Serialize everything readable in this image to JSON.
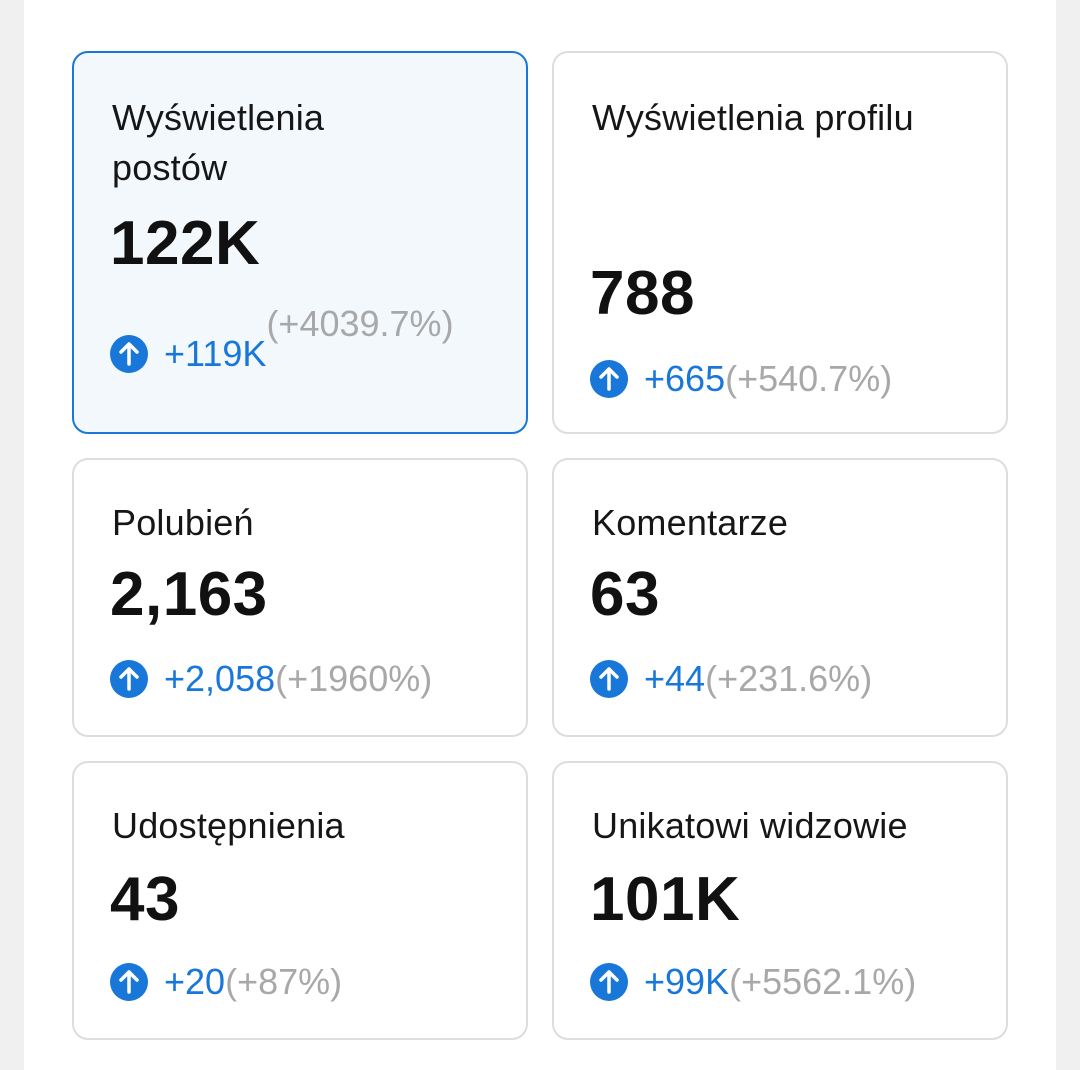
{
  "colors": {
    "accent": "#1877d8",
    "muted": "#a8a8a8",
    "border": "#dddddd",
    "selected_bg": "#f3f8fc"
  },
  "icons": {
    "trend": "arrow-up-circle-icon"
  },
  "cards": [
    {
      "title": "Wyświetlenia postów",
      "value": "122K",
      "delta": "+119K",
      "percent": "(+4039.7%)",
      "selected": true
    },
    {
      "title": "Wyświetlenia profilu",
      "value": "788",
      "delta": "+665",
      "percent": "(+540.7%)",
      "selected": false
    },
    {
      "title": "Polubień",
      "value": "2,163",
      "delta": "+2,058",
      "percent": "(+1960%)",
      "selected": false
    },
    {
      "title": "Komentarze",
      "value": "63",
      "delta": "+44",
      "percent": "(+231.6%)",
      "selected": false
    },
    {
      "title": "Udostępnienia",
      "value": "43",
      "delta": "+20",
      "percent": "(+87%)",
      "selected": false
    },
    {
      "title": "Unikatowi widzowie",
      "value": "101K",
      "delta": "+99K",
      "percent": "(+5562.1%)",
      "selected": false
    }
  ]
}
